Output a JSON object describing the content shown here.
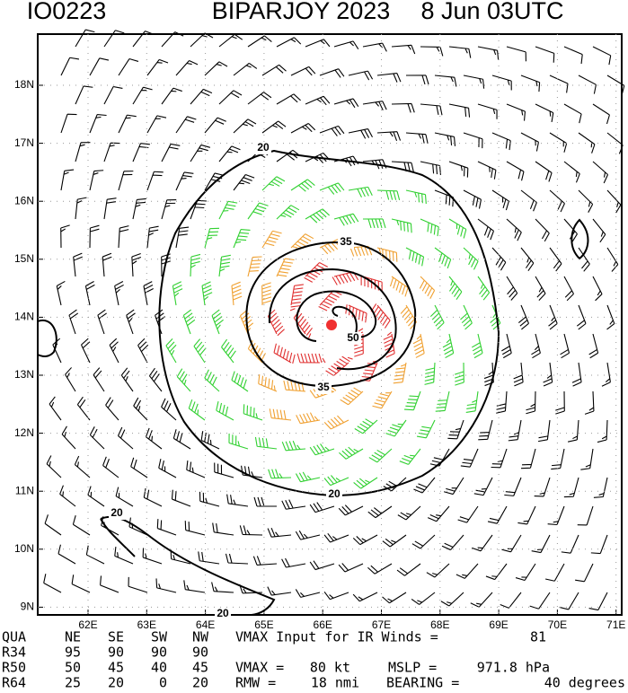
{
  "header": {
    "title_id": "IO0223",
    "title_storm": "BIPARJOY 2023",
    "title_time": "8 Jun 03UTC"
  },
  "map": {
    "lat_labels": [
      "18N",
      "17N",
      "16N",
      "15N",
      "14N",
      "13N",
      "12N",
      "11N",
      "10N",
      "9N"
    ],
    "lon_labels": [
      "62E",
      "63E",
      "64E",
      "65E",
      "66E",
      "67E",
      "68E",
      "69E",
      "70E",
      "71E"
    ],
    "contour_labels": [
      "20",
      "35",
      "50",
      "35",
      "20",
      "20",
      "20"
    ]
  },
  "table": {
    "header": [
      "QUA",
      "NE",
      "SE",
      "SW",
      "NW"
    ],
    "rows": [
      [
        "R34",
        "95",
        "90",
        "90",
        "90"
      ],
      [
        "R50",
        "50",
        "45",
        "40",
        "45"
      ],
      [
        "R64",
        "25",
        "20",
        "0",
        "20"
      ]
    ]
  },
  "info": {
    "line1_label": "VMAX Input for IR Winds =",
    "line1_value": "81",
    "vmax_label": "VMAX =",
    "vmax_value": "80 kt",
    "mslp_label": "MSLP =",
    "mslp_value": "971.8 hPa",
    "rmw_label": "RMW =",
    "rmw_value": "18 nmi",
    "bearing_label": "BEARING =",
    "bearing_value": "40 degrees"
  }
}
